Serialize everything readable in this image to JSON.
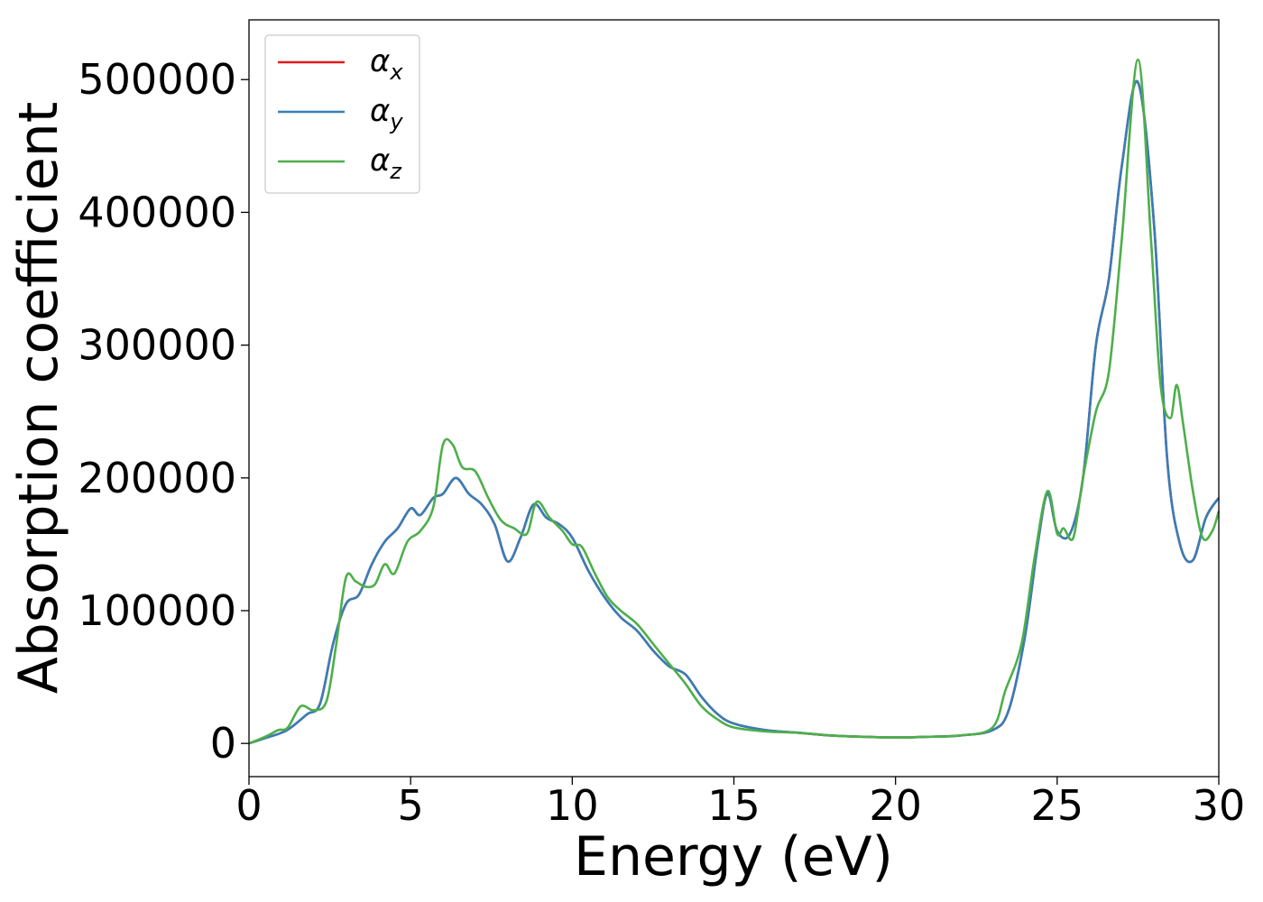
{
  "chart_data": {
    "type": "line",
    "title": "",
    "xlabel": "Energy (eV)",
    "ylabel": "Absorption coefficient",
    "xlim": [
      0,
      30
    ],
    "ylim": [
      -25000,
      545000
    ],
    "xticks": [
      0,
      5,
      10,
      15,
      20,
      25,
      30
    ],
    "xtick_labels": [
      "0",
      "5",
      "10",
      "15",
      "20",
      "25",
      "30"
    ],
    "yticks": [
      0,
      100000,
      200000,
      300000,
      400000,
      500000
    ],
    "ytick_labels": [
      "0",
      "100000",
      "200000",
      "300000",
      "400000",
      "500000"
    ],
    "grid": false,
    "legend_position": "top-left",
    "series": [
      {
        "name": "α",
        "subscript": "x",
        "color": "#e41a1c",
        "x": [
          0,
          0.5,
          1,
          1.3,
          1.8,
          2.2,
          2.6,
          3.0,
          3.4,
          3.8,
          4.2,
          4.6,
          5.0,
          5.3,
          5.7,
          6.0,
          6.4,
          6.8,
          7.2,
          7.6,
          8.0,
          8.4,
          8.8,
          9.2,
          9.6,
          10.0,
          10.5,
          11.0,
          11.5,
          12.0,
          12.5,
          13.0,
          13.5,
          14.0,
          14.5,
          15.0,
          16.0,
          17.0,
          18.0,
          19.0,
          20.0,
          21.0,
          22.0,
          23.0,
          23.5,
          24.0,
          24.4,
          24.7,
          25.0,
          25.4,
          25.8,
          26.2,
          26.6,
          27.0,
          27.5,
          28.0,
          28.4,
          28.8,
          29.2,
          29.6,
          30.0
        ],
        "y": [
          0,
          4000,
          8000,
          12000,
          22000,
          30000,
          75000,
          105000,
          112000,
          135000,
          152000,
          162000,
          177000,
          172000,
          185000,
          188000,
          200000,
          188000,
          180000,
          165000,
          137000,
          155000,
          180000,
          170000,
          165000,
          155000,
          130000,
          110000,
          95000,
          85000,
          70000,
          58000,
          52000,
          35000,
          22000,
          15000,
          10000,
          8000,
          6000,
          5000,
          4500,
          5000,
          6000,
          10000,
          25000,
          80000,
          150000,
          188000,
          160000,
          158000,
          200000,
          300000,
          350000,
          435000,
          498000,
          390000,
          215000,
          150000,
          138000,
          170000,
          185000
        ]
      },
      {
        "name": "α",
        "subscript": "y",
        "color": "#377eb8",
        "x": [
          0,
          0.5,
          1,
          1.3,
          1.8,
          2.2,
          2.6,
          3.0,
          3.4,
          3.8,
          4.2,
          4.6,
          5.0,
          5.3,
          5.7,
          6.0,
          6.4,
          6.8,
          7.2,
          7.6,
          8.0,
          8.4,
          8.8,
          9.2,
          9.6,
          10.0,
          10.5,
          11.0,
          11.5,
          12.0,
          12.5,
          13.0,
          13.5,
          14.0,
          14.5,
          15.0,
          16.0,
          17.0,
          18.0,
          19.0,
          20.0,
          21.0,
          22.0,
          23.0,
          23.5,
          24.0,
          24.4,
          24.7,
          25.0,
          25.4,
          25.8,
          26.2,
          26.6,
          27.0,
          27.5,
          28.0,
          28.4,
          28.8,
          29.2,
          29.6,
          30.0
        ],
        "y": [
          0,
          4000,
          8000,
          12000,
          22000,
          30000,
          75000,
          105000,
          112000,
          135000,
          152000,
          162000,
          177000,
          172000,
          185000,
          188000,
          200000,
          188000,
          180000,
          165000,
          137000,
          155000,
          180000,
          170000,
          165000,
          155000,
          130000,
          110000,
          95000,
          85000,
          70000,
          58000,
          52000,
          35000,
          22000,
          15000,
          10000,
          8000,
          6000,
          5000,
          4500,
          5000,
          6000,
          10000,
          25000,
          80000,
          150000,
          188000,
          160000,
          158000,
          200000,
          300000,
          350000,
          435000,
          498000,
          390000,
          215000,
          150000,
          138000,
          170000,
          185000
        ]
      },
      {
        "name": "α",
        "subscript": "z",
        "color": "#4daf4a",
        "x": [
          0,
          0.5,
          0.9,
          1.2,
          1.6,
          2.0,
          2.4,
          2.7,
          3.0,
          3.3,
          3.6,
          3.9,
          4.2,
          4.5,
          4.9,
          5.3,
          5.7,
          6.0,
          6.3,
          6.6,
          7.0,
          7.4,
          7.8,
          8.2,
          8.6,
          8.9,
          9.3,
          9.7,
          10.0,
          10.3,
          10.7,
          11.1,
          11.5,
          12.0,
          12.5,
          13.0,
          13.5,
          14.0,
          14.5,
          15.0,
          16.0,
          17.0,
          18.0,
          19.0,
          20.0,
          21.0,
          22.0,
          23.0,
          23.4,
          23.9,
          24.3,
          24.7,
          25.0,
          25.2,
          25.5,
          25.8,
          26.2,
          26.6,
          27.0,
          27.5,
          27.9,
          28.2,
          28.5,
          28.7,
          28.9,
          29.2,
          29.5,
          29.8,
          30.0
        ],
        "y": [
          0,
          5000,
          10000,
          12000,
          28000,
          25000,
          32000,
          75000,
          125000,
          122000,
          118000,
          120000,
          135000,
          128000,
          152000,
          160000,
          178000,
          225000,
          225000,
          208000,
          205000,
          185000,
          168000,
          162000,
          158000,
          182000,
          170000,
          160000,
          150000,
          148000,
          128000,
          110000,
          100000,
          90000,
          75000,
          60000,
          45000,
          28000,
          18000,
          12000,
          9000,
          8000,
          6000,
          5000,
          4500,
          5000,
          6000,
          12000,
          40000,
          75000,
          140000,
          190000,
          158000,
          162000,
          155000,
          200000,
          250000,
          280000,
          380000,
          515000,
          380000,
          270000,
          245000,
          270000,
          240000,
          190000,
          155000,
          160000,
          175000
        ]
      }
    ]
  }
}
